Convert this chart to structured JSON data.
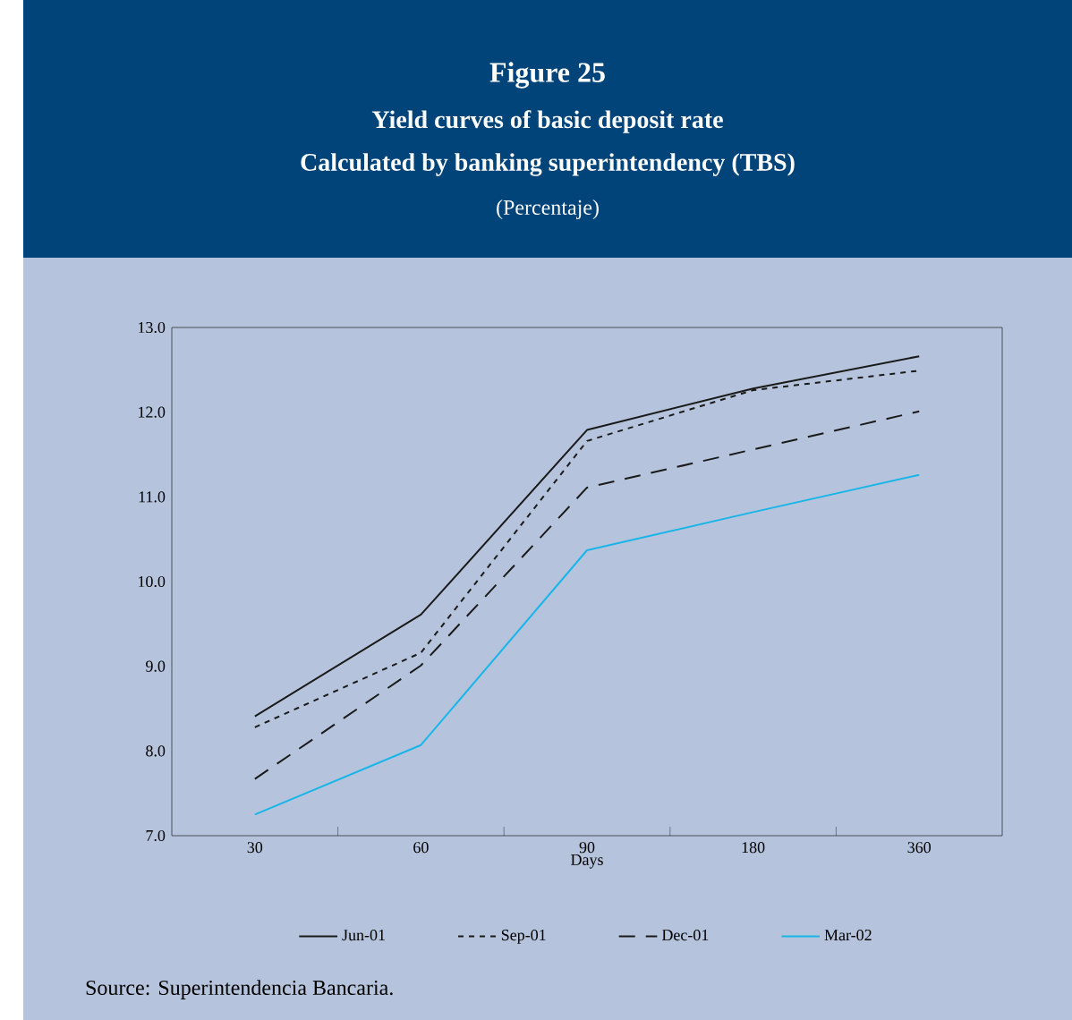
{
  "chart_data": {
    "type": "line",
    "title": "Figure 25",
    "subtitle": "Yield curves of basic deposit rate",
    "ylabel": "(Percentaje)",
    "xlabel": "Days",
    "annotations": [
      "Calculated by banking superintendency (TBS)",
      "Source: Superintendencia Bancaria."
    ],
    "categories": [
      "30",
      "60",
      "90",
      "180",
      "360"
    ],
    "series": [
      {
        "name": "Jun-01",
        "color": "#1a1a1a",
        "line_style": "solid",
        "values": [
          8.41,
          9.61,
          11.79,
          12.28,
          12.66
        ]
      },
      {
        "name": "Sep-01",
        "color": "#1a1a1a",
        "line_style": "dotted",
        "values": [
          8.28,
          9.16,
          11.66,
          12.26,
          12.49
        ]
      },
      {
        "name": "Dec-01",
        "color": "#1a1a1a",
        "line_style": "dashed",
        "values": [
          7.67,
          9.01,
          11.11,
          11.56,
          12.01
        ]
      },
      {
        "name": "Mar-02",
        "color": "#19b5e8",
        "line_style": "solid",
        "values": [
          7.25,
          8.07,
          10.37,
          10.82,
          11.26
        ]
      }
    ],
    "ylim": [
      7,
      13
    ],
    "yticks": [
      {
        "value": 7,
        "label": "7.0"
      },
      {
        "value": 8,
        "label": "8.0"
      },
      {
        "value": 9,
        "label": "9.0"
      },
      {
        "value": 10,
        "label": "10.0"
      },
      {
        "value": 11,
        "label": "11.0"
      },
      {
        "value": 12,
        "label": "12.0"
      },
      {
        "value": 13,
        "label": "13.0"
      }
    ],
    "grid": false,
    "legend": "bottom",
    "marker": "none"
  }
}
